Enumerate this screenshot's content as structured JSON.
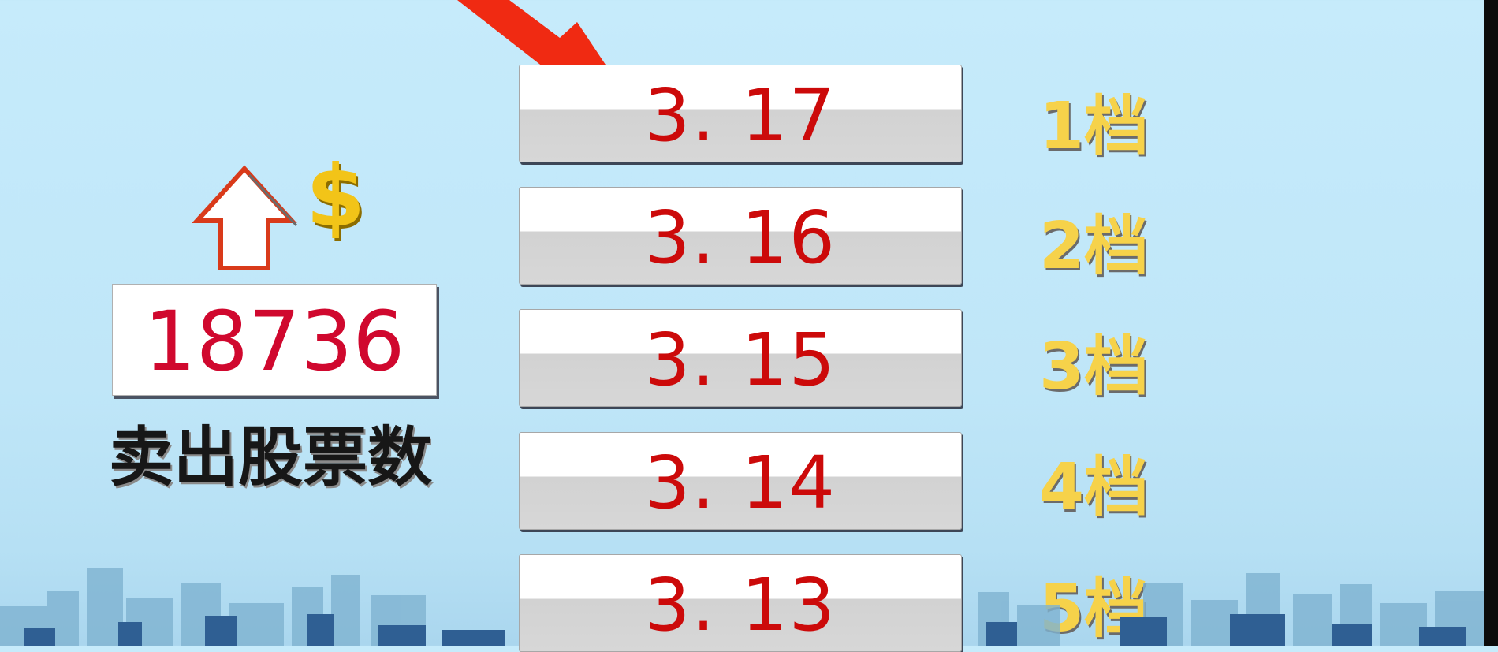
{
  "sell_panel": {
    "count": "18736",
    "caption": "卖出股票数",
    "icons": [
      "up-arrow-icon",
      "dollar-icon"
    ],
    "dollar_glyph": "$"
  },
  "order_book": {
    "levels": [
      {
        "price": "3. 17",
        "label": "1档"
      },
      {
        "price": "3. 16",
        "label": "2档"
      },
      {
        "price": "3. 15",
        "label": "3档"
      },
      {
        "price": "3. 14",
        "label": "4档"
      },
      {
        "price": "3. 13",
        "label": "5档"
      }
    ]
  },
  "colors": {
    "background": "#c6ebfb",
    "price_text": "#cc0a0a",
    "count_text": "#d0082e",
    "level_label": "#f6d24a",
    "pointer_arrow": "#f02a12"
  }
}
